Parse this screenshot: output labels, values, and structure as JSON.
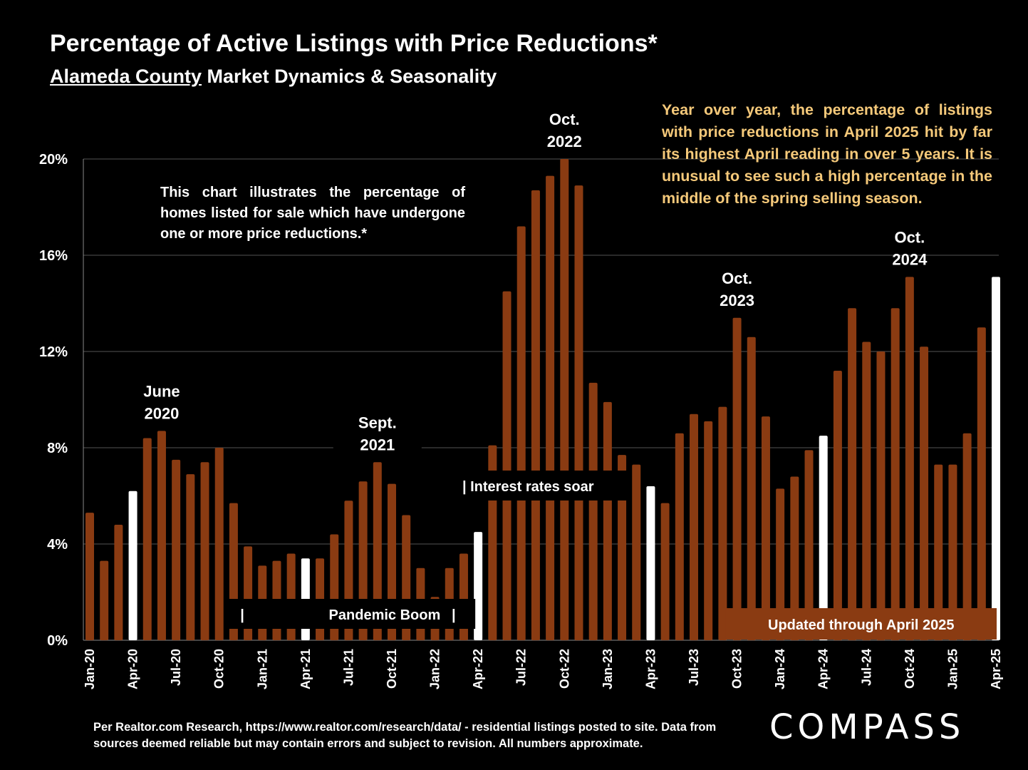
{
  "header": {
    "title": "Percentage of Active Listings with Price Reductions*",
    "subtitle_underlined": "Alameda County",
    "subtitle_rest": " Market Dynamics & Seasonality"
  },
  "note": "This chart illustrates the percentage of homes listed for sale which have undergone one or more price reductions.*",
  "callout": "Year over year, the percentage of listings with price reductions in April 2025 hit by far its highest April reading in over 5 years. It is unusual to see such a high percentage in the middle of the spring selling season.",
  "footer": {
    "source": "Per Realtor.com Research, https://www.realtor.com/research/data/ - residential listings posted to site.  Data from sources deemed reliable but may contain errors and subject to revision. All numbers approximate.",
    "logo": "COMPASS"
  },
  "colors": {
    "bar": "#8a3b12",
    "highlight": "#ffffff",
    "callout_text": "#f5c97a",
    "background": "#000000",
    "grid": "#555555"
  },
  "chart_data": {
    "type": "bar",
    "ylim": [
      0,
      20
    ],
    "y_ticks": [
      "0%",
      "4%",
      "8%",
      "12%",
      "16%",
      "20%"
    ],
    "y_tick_values": [
      0,
      4,
      8,
      12,
      16,
      20
    ],
    "grid": true,
    "categories": [
      "Jan-20",
      "Feb-20",
      "Mar-20",
      "Apr-20",
      "May-20",
      "Jun-20",
      "Jul-20",
      "Aug-20",
      "Sep-20",
      "Oct-20",
      "Nov-20",
      "Dec-20",
      "Jan-21",
      "Feb-21",
      "Mar-21",
      "Apr-21",
      "May-21",
      "Jun-21",
      "Jul-21",
      "Aug-21",
      "Sep-21",
      "Oct-21",
      "Nov-21",
      "Dec-21",
      "Jan-22",
      "Feb-22",
      "Mar-22",
      "Apr-22",
      "May-22",
      "Jun-22",
      "Jul-22",
      "Aug-22",
      "Sep-22",
      "Oct-22",
      "Nov-22",
      "Dec-22",
      "Jan-23",
      "Feb-23",
      "Mar-23",
      "Apr-23",
      "May-23",
      "Jun-23",
      "Jul-23",
      "Aug-23",
      "Sep-23",
      "Oct-23",
      "Nov-23",
      "Dec-23",
      "Jan-24",
      "Feb-24",
      "Mar-24",
      "Apr-24",
      "May-24",
      "Jun-24",
      "Jul-24",
      "Aug-24",
      "Sep-24",
      "Oct-24",
      "Nov-24",
      "Dec-24",
      "Jan-25",
      "Feb-25",
      "Mar-25",
      "Apr-25"
    ],
    "values": [
      5.3,
      3.3,
      4.8,
      6.2,
      8.4,
      8.7,
      7.5,
      6.9,
      7.4,
      8.0,
      5.7,
      3.9,
      3.1,
      3.3,
      3.6,
      3.4,
      3.4,
      4.4,
      5.8,
      6.6,
      7.4,
      6.5,
      5.2,
      3.0,
      1.8,
      3.0,
      3.6,
      4.5,
      8.1,
      14.5,
      17.2,
      18.7,
      19.3,
      20.0,
      18.9,
      10.7,
      9.9,
      7.7,
      7.3,
      6.4,
      5.7,
      8.6,
      9.4,
      9.1,
      9.7,
      13.4,
      12.6,
      9.3,
      6.3,
      6.8,
      7.9,
      8.5,
      11.2,
      13.8,
      12.4,
      12.0,
      13.8,
      15.1,
      12.2,
      7.3,
      7.3,
      8.6,
      13.0,
      15.1
    ],
    "highlighted_categories": [
      "Apr-20",
      "Apr-21",
      "Apr-22",
      "Apr-23",
      "Apr-24",
      "Apr-25"
    ],
    "x_tick_labels": [
      "Jan-20",
      "Apr-20",
      "Jul-20",
      "Oct-20",
      "Jan-21",
      "Apr-21",
      "Jul-21",
      "Oct-21",
      "Jan-22",
      "Apr-22",
      "Jul-22",
      "Oct-22",
      "Jan-23",
      "Apr-23",
      "Jul-23",
      "Oct-23",
      "Jan-24",
      "Apr-24",
      "Jul-24",
      "Oct-24",
      "Jan-25",
      "Apr-25"
    ],
    "peak_annotations": [
      {
        "category": "Jun-20",
        "lines": [
          "June",
          "2020"
        ]
      },
      {
        "category": "Sep-21",
        "lines": [
          "Sept.",
          "2021"
        ]
      },
      {
        "category": "Oct-22",
        "lines": [
          "Oct.",
          "2022"
        ]
      },
      {
        "category": "Oct-23",
        "lines": [
          "Oct.",
          "2023"
        ]
      },
      {
        "category": "Oct-24",
        "lines": [
          "Oct.",
          "2024"
        ]
      }
    ],
    "period_labels": {
      "pandemic_boom": "Pandemic Boom",
      "pandemic_start_marker": "|",
      "pandemic_end_marker": "|",
      "interest_rates": "| Interest rates soar",
      "updated": "Updated through April 2025"
    }
  }
}
